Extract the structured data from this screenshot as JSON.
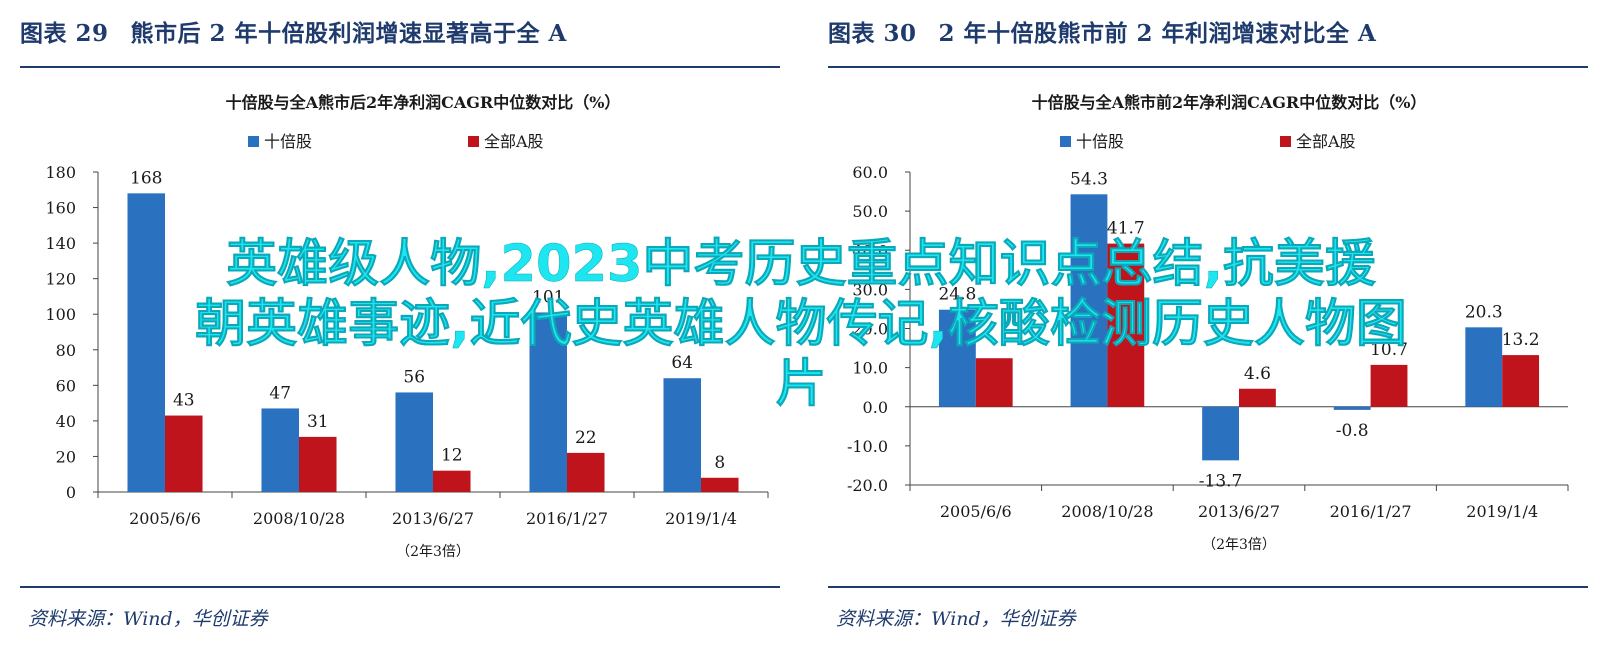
{
  "figures": [
    {
      "title_num": "图表 29",
      "title_text": "熊市后 2 年十倍股利润增速显著高于全 A",
      "source": "资料来源：Wind，华创证券",
      "chart_data": {
        "type": "bar",
        "title": "十倍股与全A熊市后2年净利润CAGR中位数对比（%）",
        "categories": [
          "2005/6/6",
          "2008/10/28",
          "2013/6/27",
          "2016/1/27",
          "2019/1/4"
        ],
        "xnote": "（2年3倍）",
        "series": [
          {
            "name": "十倍股",
            "color": "#2a72c0",
            "values": [
              168,
              47,
              56,
              101,
              64
            ]
          },
          {
            "name": "全部A股",
            "color": "#c0141c",
            "values": [
              43,
              31,
              12,
              22,
              8
            ]
          }
        ],
        "ylim": [
          0,
          180
        ],
        "yticks": [
          0,
          20,
          40,
          60,
          80,
          100,
          120,
          140,
          160,
          180
        ],
        "ytick_labels": [
          "0",
          "20",
          "40",
          "60",
          "80",
          "100",
          "120",
          "140",
          "160",
          "180"
        ],
        "value_labels": [
          [
            "168",
            "47",
            "56",
            "101",
            "64"
          ],
          [
            "43",
            "31",
            "12",
            "22",
            "8"
          ]
        ],
        "legend": "top-center",
        "grid": false
      }
    },
    {
      "title_num": "图表 30",
      "title_text": "2 年十倍股熊市前 2 年利润增速对比全 A",
      "source": "资料来源：Wind，华创证券",
      "chart_data": {
        "type": "bar",
        "title": "十倍股与全A熊市前2年净利润CAGR中位数对比（%）",
        "categories": [
          "2005/6/6",
          "2008/10/28",
          "2013/6/27",
          "2016/1/27",
          "2019/1/4"
        ],
        "xnote": "（2年3倍）",
        "series": [
          {
            "name": "十倍股",
            "color": "#2a72c0",
            "values": [
              24.8,
              54.3,
              -13.7,
              -0.8,
              20.3
            ]
          },
          {
            "name": "全部A股",
            "color": "#c0141c",
            "values": [
              12.4,
              41.7,
              4.6,
              10.7,
              13.2
            ]
          }
        ],
        "ylim": [
          -20,
          60
        ],
        "yticks": [
          -20,
          -10,
          0,
          10,
          20,
          30,
          40,
          50,
          60
        ],
        "ytick_labels": [
          "-20.0",
          "-10.0",
          "0.0",
          "10.0",
          "20.0",
          "30.0",
          "40.0",
          "50.0",
          "60.0"
        ],
        "value_labels": [
          [
            "24.8",
            "54.3",
            "-13.7",
            "-0.8",
            "20.3"
          ],
          [
            "",
            "41.7",
            "4.6",
            "10.7",
            "13.2"
          ]
        ],
        "legend": "top-center",
        "grid": false
      }
    }
  ],
  "overlay": {
    "line1": "英雄级人物,2023中考历史重点知识点总结,抗美援",
    "line2": "朝英雄事迹,近代史英雄人物传记,核酸检测历史人物图",
    "line3": "片"
  }
}
